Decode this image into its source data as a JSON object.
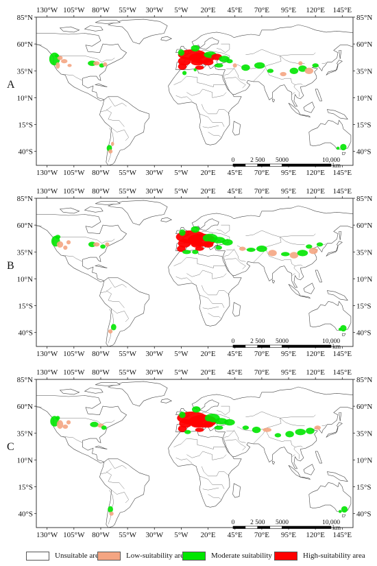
{
  "panels": [
    {
      "label": "A",
      "scale": {
        "ticks": [
          "0",
          "2 500",
          "5000",
          "10,000"
        ],
        "unit": "km"
      }
    },
    {
      "label": "B",
      "scale": {
        "ticks": [
          "0",
          "2 500",
          "5000",
          "10,000"
        ],
        "unit": "km"
      }
    },
    {
      "label": "C",
      "scale": {
        "ticks": [
          "0",
          "2 500",
          "5000",
          "10,000"
        ],
        "unit": "km"
      }
    }
  ],
  "longitude_labels": [
    "130°W",
    "105°W",
    "80°W",
    "55°W",
    "30°W",
    "5°W",
    "20°E",
    "45°E",
    "70°E",
    "95°E",
    "120°E",
    "145°E"
  ],
  "latitude_labels": [
    "85°N",
    "60°N",
    "35°N",
    "10°N",
    "15°S",
    "40°S"
  ],
  "legend": [
    {
      "label": "Unsuitable area",
      "color": "#ffffff"
    },
    {
      "label": "Low-suitability area",
      "color": "#f4a582"
    },
    {
      "label": "Moderate suitability area",
      "color": "#00e600"
    },
    {
      "label": "High-suitability area",
      "color": "#ff0000"
    }
  ]
}
